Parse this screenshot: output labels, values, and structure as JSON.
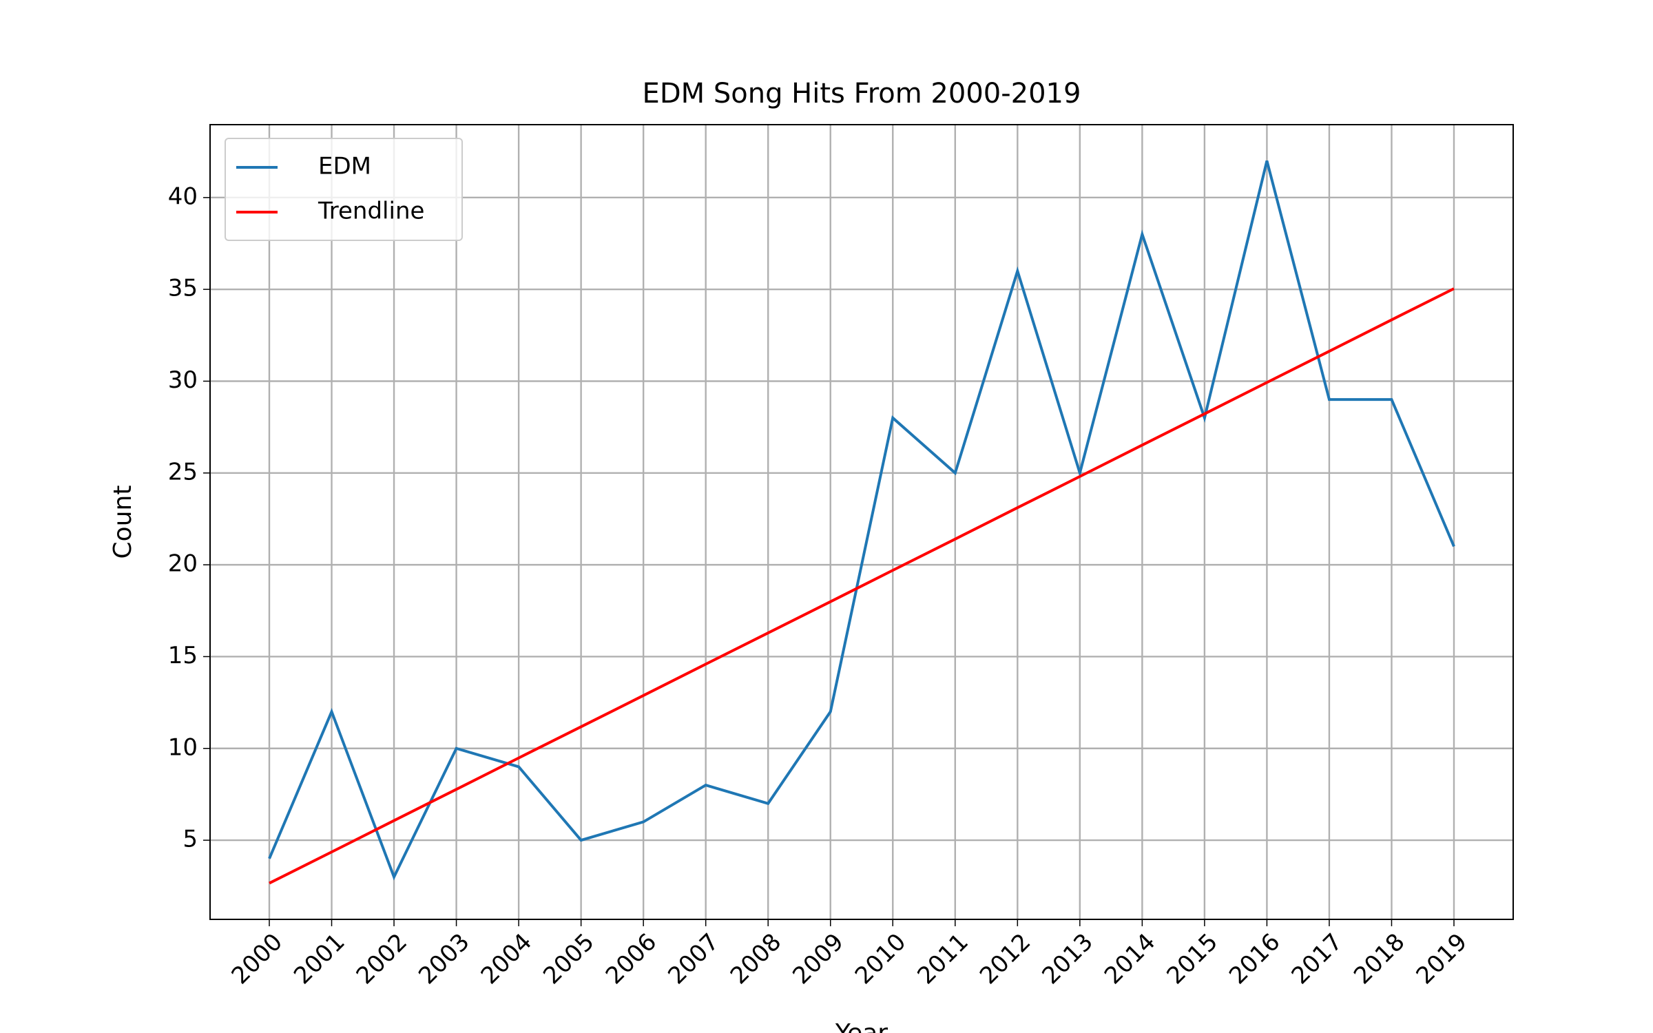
{
  "chart_data": {
    "type": "line",
    "title": "EDM Song Hits From 2000-2019",
    "xlabel": "Year",
    "ylabel": "Count",
    "x": [
      2000,
      2001,
      2002,
      2003,
      2004,
      2005,
      2006,
      2007,
      2008,
      2009,
      2010,
      2011,
      2012,
      2013,
      2014,
      2015,
      2016,
      2017,
      2018,
      2019
    ],
    "series": [
      {
        "name": "EDM",
        "color": "#1f77b4",
        "values": [
          4,
          12,
          3,
          10,
          9,
          5,
          6,
          8,
          7,
          12,
          28,
          25,
          36,
          25,
          38,
          28,
          42,
          29,
          29,
          21
        ]
      },
      {
        "name": "Trendline",
        "color": "#ff0000",
        "values": [
          2.66,
          4.36,
          6.07,
          7.77,
          9.48,
          11.18,
          12.88,
          14.59,
          16.29,
          17.99,
          19.7,
          21.4,
          23.11,
          24.81,
          26.52,
          28.22,
          29.93,
          31.63,
          33.34,
          35.04
        ]
      }
    ],
    "xlim": [
      1999.05,
      2019.95
    ],
    "xticks": [
      2000,
      2001,
      2002,
      2003,
      2004,
      2005,
      2006,
      2007,
      2008,
      2009,
      2010,
      2011,
      2012,
      2013,
      2014,
      2015,
      2016,
      2017,
      2018,
      2019
    ],
    "ylim": [
      0.69,
      43.97
    ],
    "yticks": [
      5,
      10,
      15,
      20,
      25,
      30,
      35,
      40
    ],
    "grid": true,
    "legend": "upper left"
  }
}
